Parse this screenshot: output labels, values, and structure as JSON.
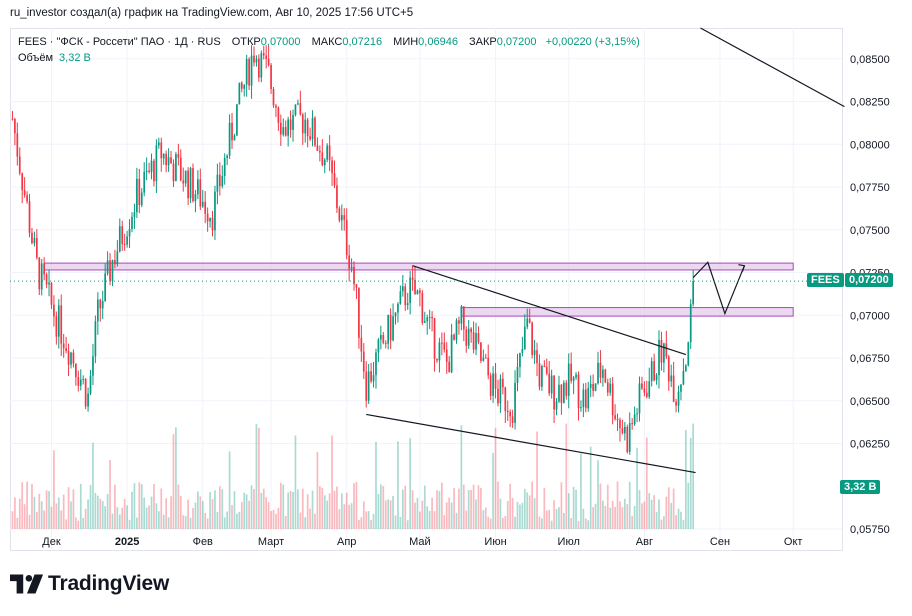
{
  "header": {
    "attribution": "ru_investor создал(а) график на TradingView.com, Авг 10, 2025 17:56 UTC+5"
  },
  "legend": {
    "symbol": "FEES · \"ФСК - Россети\" ПАО · 1Д · RUS",
    "open_label": "ОТКР",
    "open_value": "0,07000",
    "high_label": "МАКС",
    "high_value": "0,07216",
    "low_label": "МИН",
    "low_value": "0,06946",
    "close_label": "ЗАКР",
    "close_value": "0,07200",
    "change": "+0,00220 (+3,15%)",
    "volume_label": "Объём",
    "volume_value": "3,32 B"
  },
  "tags": {
    "symbol_tag": "FEES",
    "price_tag": "0,07200",
    "volume_tag": "3,32 B"
  },
  "brand": {
    "name": "TradingView"
  },
  "colors": {
    "up": "#089981",
    "down": "#f23645",
    "zone": "#e1bee7",
    "zone_border": "#ab47bc"
  },
  "chart_data": {
    "type": "candlestick",
    "price_axis": {
      "ylim": [
        0.0575,
        0.0868
      ],
      "ticks": [
        0.0575,
        0.0625,
        0.065,
        0.0675,
        0.07,
        0.0725,
        0.075,
        0.0775,
        0.08,
        0.0825,
        0.085
      ],
      "tick_labels": [
        "0,05750",
        "0,06250",
        "0,06500",
        "0,06750",
        "0,07000",
        "0,07250",
        "0,07500",
        "0,07750",
        "0,08000",
        "0,08250",
        "0,08500"
      ]
    },
    "time_axis": {
      "labels": [
        "Дек",
        "2025",
        "Фев",
        "Март",
        "Апр",
        "Май",
        "Июн",
        "Июл",
        "Авг",
        "Сен",
        "Окт"
      ],
      "dates": [
        "2024-12-01",
        "2025-01-01",
        "2025-02-01",
        "2025-03-01",
        "2025-04-01",
        "2025-05-01",
        "2025-06-01",
        "2025-07-01",
        "2025-08-01",
        "2025-09-01",
        "2025-10-01"
      ],
      "range": [
        "2024-11-14",
        "2025-10-21"
      ]
    },
    "last_close": 0.072,
    "anchors": [
      [
        "2024-11-15",
        0.0815
      ],
      [
        "2024-11-25",
        0.0728
      ],
      [
        "2024-12-01",
        0.0705
      ],
      [
        "2024-12-10",
        0.0675
      ],
      [
        "2024-12-16",
        0.0652
      ],
      [
        "2024-12-20",
        0.07
      ],
      [
        "2024-12-26",
        0.0732
      ],
      [
        "2025-01-05",
        0.077
      ],
      [
        "2025-01-15",
        0.0795
      ],
      [
        "2025-01-25",
        0.078
      ],
      [
        "2025-02-05",
        0.076
      ],
      [
        "2025-02-15",
        0.082
      ],
      [
        "2025-02-22",
        0.0855
      ],
      [
        "2025-02-28",
        0.084
      ],
      [
        "2025-03-06",
        0.081
      ],
      [
        "2025-03-15",
        0.0815
      ],
      [
        "2025-03-24",
        0.079
      ],
      [
        "2025-03-29",
        0.076
      ],
      [
        "2025-04-03",
        0.073
      ],
      [
        "2025-04-09",
        0.066
      ],
      [
        "2025-04-18",
        0.069
      ],
      [
        "2025-04-26",
        0.0715
      ],
      [
        "2025-05-01",
        0.071
      ],
      [
        "2025-05-05",
        0.069
      ],
      [
        "2025-05-12",
        0.0672
      ],
      [
        "2025-05-18",
        0.0695
      ],
      [
        "2025-05-24",
        0.068
      ],
      [
        "2025-06-01",
        0.0655
      ],
      [
        "2025-06-08",
        0.0648
      ],
      [
        "2025-06-14",
        0.0695
      ],
      [
        "2025-06-19",
        0.0665
      ],
      [
        "2025-06-25",
        0.0655
      ],
      [
        "2025-07-02",
        0.0662
      ],
      [
        "2025-07-08",
        0.065
      ],
      [
        "2025-07-15",
        0.067
      ],
      [
        "2025-07-21",
        0.064
      ],
      [
        "2025-07-25",
        0.0628
      ],
      [
        "2025-07-31",
        0.0655
      ],
      [
        "2025-08-04",
        0.0665
      ],
      [
        "2025-08-08",
        0.068
      ],
      [
        "2025-08-11",
        0.067
      ],
      [
        "2025-08-14",
        0.0655
      ],
      [
        "2025-08-18",
        0.0676
      ],
      [
        "2025-08-20",
        0.07
      ],
      [
        "2025-08-21",
        0.072
      ]
    ],
    "zones": [
      {
        "from": "2024-11-28",
        "to": "2025-10-01",
        "low": 0.07265,
        "high": 0.07305
      },
      {
        "from": "2025-05-18",
        "to": "2025-10-01",
        "low": 0.06995,
        "high": 0.07045
      }
    ],
    "trend_lines": [
      {
        "points": [
          [
            "2025-04-09",
            0.0642
          ],
          [
            "2025-08-22",
            0.0608
          ]
        ]
      },
      {
        "points": [
          [
            "2025-04-28",
            0.0729
          ],
          [
            "2025-08-18",
            0.0677
          ]
        ]
      },
      {
        "points": [
          [
            "2025-08-24",
            0.0868
          ],
          [
            "2025-10-22",
            0.0822
          ]
        ]
      }
    ],
    "projection": [
      [
        "2025-08-21",
        0.0722
      ],
      [
        "2025-08-27",
        0.0731
      ],
      [
        "2025-09-03",
        0.0701
      ],
      [
        "2025-09-11",
        0.0729
      ]
    ]
  }
}
